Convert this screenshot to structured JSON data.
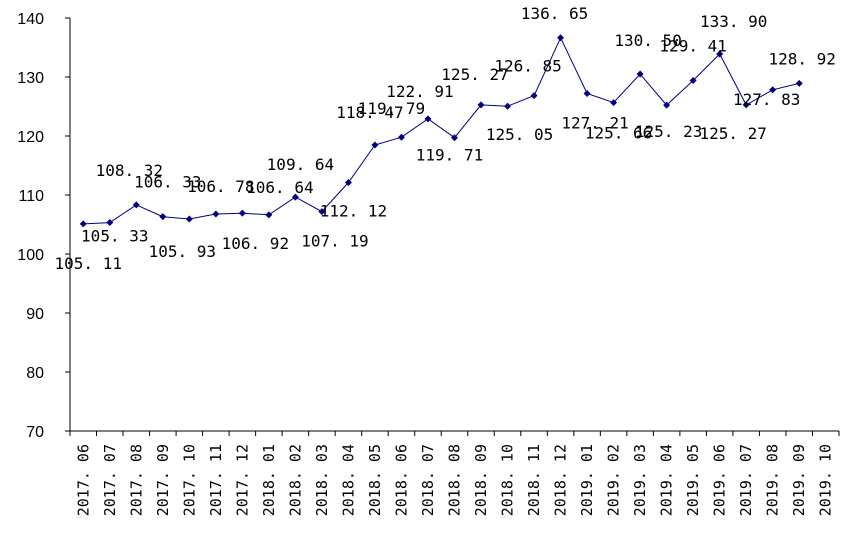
{
  "chart_data": {
    "type": "line",
    "title": "",
    "xlabel": "",
    "ylabel": "",
    "ylim": [
      70,
      140
    ],
    "yticks": [
      70,
      80,
      90,
      100,
      110,
      120,
      130,
      140
    ],
    "grid": false,
    "legend": "none",
    "line_color": "#000080",
    "marker": "diamond",
    "categories": [
      "2017.06",
      "2017.07",
      "2017.08",
      "2017.09",
      "2017.10",
      "2017.11",
      "2017.12",
      "2018.01",
      "2018.02",
      "2018.03",
      "2018.04",
      "2018.05",
      "2018.06",
      "2018.07",
      "2018.08",
      "2018.09",
      "2018.10",
      "2018.11",
      "2018.12",
      "2019.01",
      "2019.02",
      "2019.03",
      "2019.04",
      "2019.05",
      "2019.06",
      "2019.07",
      "2019.08",
      "2019.09",
      "2019.10"
    ],
    "x_tick_labels": [
      "2017. 06",
      "2017. 07",
      "2017. 08",
      "2017. 09",
      "2017. 10",
      "2017. 11",
      "2017. 12",
      "2018. 01",
      "2018. 02",
      "2018. 03",
      "2018. 04",
      "2018. 05",
      "2018. 06",
      "2018. 07",
      "2018. 08",
      "2018. 09",
      "2018. 10",
      "2018. 11",
      "2018. 12",
      "2019. 01",
      "2019. 02",
      "2019. 03",
      "2019. 04",
      "2019. 05",
      "2019. 06",
      "2019. 07",
      "2019. 08",
      "2019. 09",
      "2019. 10"
    ],
    "series": [
      {
        "values": [
          105.11,
          105.33,
          108.32,
          106.33,
          105.93,
          106.78,
          106.92,
          106.64,
          109.64,
          107.19,
          112.12,
          118.47,
          119.79,
          122.91,
          119.71,
          125.27,
          125.05,
          126.85,
          136.65,
          127.21,
          125.66,
          130.5,
          125.23,
          129.41,
          133.9,
          125.27,
          127.83,
          128.92,
          null
        ],
        "data_labels": [
          "105. 11",
          "105. 33",
          "108. 32",
          "106. 33",
          "105. 93",
          "106. 78",
          "106. 92",
          "106. 64",
          "109. 64",
          "107. 19",
          "112. 12",
          "118. 47",
          "119. 79",
          "122. 91",
          "119. 71",
          "125. 27",
          "125. 05",
          "126. 85",
          "136. 65",
          "127. 21",
          "125. 66",
          "130. 50",
          "125. 23",
          "129. 41",
          "133. 90",
          "125. 27",
          "127. 83",
          "128. 92",
          ""
        ]
      }
    ]
  }
}
